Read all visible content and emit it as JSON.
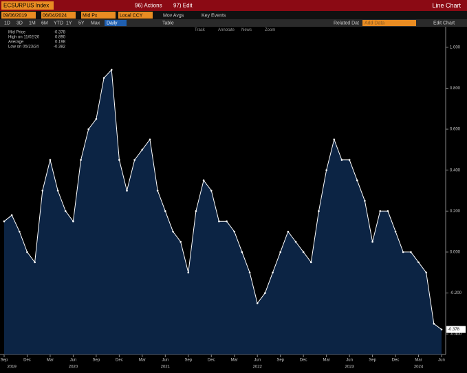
{
  "header": {
    "ticker": "ECSURPUS Index",
    "actions": "96) Actions",
    "edit": "97) Edit",
    "view": "Line Chart"
  },
  "controls": {
    "start": "09/06/2019",
    "end": "06/04/2024",
    "field": "Mid Px",
    "currency": "Local CCY",
    "mov_avgs": "Mov Avgs",
    "key_events": "Key Events"
  },
  "periods": [
    "1D",
    "3D",
    "1M",
    "6M",
    "YTD",
    "1Y",
    "5Y",
    "Max"
  ],
  "toolbar": {
    "freq": "Daily",
    "table": "Table",
    "related": "Related Dat",
    "add_data": "Add Data",
    "edit_chart": "Edit Chart"
  },
  "chart_tools": [
    "Track",
    "Annotate",
    "News",
    "Zoom"
  ],
  "legend": [
    {
      "name": "Mid Price",
      "value": "-0.378"
    },
    {
      "name": "High on 11/02/20",
      "value": "0.890"
    },
    {
      "name": "Average",
      "value": "0.198"
    },
    {
      "name": "Low on 05/23/24",
      "value": "-0.382"
    }
  ],
  "chart_data": {
    "type": "line",
    "x": [
      "2019-09",
      "2019-10",
      "2019-11",
      "2019-12",
      "2020-01",
      "2020-02",
      "2020-03",
      "2020-04",
      "2020-05",
      "2020-06",
      "2020-07",
      "2020-08",
      "2020-09",
      "2020-10",
      "2020-11",
      "2020-12",
      "2021-01",
      "2021-02",
      "2021-03",
      "2021-04",
      "2021-05",
      "2021-06",
      "2021-07",
      "2021-08",
      "2021-09",
      "2021-10",
      "2021-11",
      "2021-12",
      "2022-01",
      "2022-02",
      "2022-03",
      "2022-04",
      "2022-05",
      "2022-06",
      "2022-07",
      "2022-08",
      "2022-09",
      "2022-10",
      "2022-11",
      "2022-12",
      "2023-01",
      "2023-02",
      "2023-03",
      "2023-04",
      "2023-05",
      "2023-06",
      "2023-07",
      "2023-08",
      "2023-09",
      "2023-10",
      "2023-11",
      "2023-12",
      "2024-01",
      "2024-02",
      "2024-03",
      "2024-04",
      "2024-05",
      "2024-06"
    ],
    "series": [
      {
        "name": "Mid Price",
        "color": "#ffffff",
        "values": [
          0.15,
          0.18,
          0.1,
          0.0,
          -0.05,
          0.3,
          0.45,
          0.3,
          0.2,
          0.15,
          0.45,
          0.6,
          0.65,
          0.85,
          0.89,
          0.45,
          0.3,
          0.45,
          0.5,
          0.55,
          0.3,
          0.2,
          0.1,
          0.05,
          -0.1,
          0.2,
          0.35,
          0.3,
          0.15,
          0.15,
          0.1,
          0.0,
          -0.1,
          -0.25,
          -0.2,
          -0.1,
          0.0,
          0.1,
          0.05,
          0.0,
          -0.05,
          0.2,
          0.4,
          0.55,
          0.45,
          0.45,
          0.35,
          0.25,
          0.05,
          0.2,
          0.2,
          0.1,
          0.0,
          0.0,
          -0.05,
          -0.1,
          -0.35,
          -0.378
        ]
      }
    ],
    "last_label": "-0.378",
    "ylim": [
      -0.5,
      1.1
    ],
    "yticks": [
      {
        "value": -0.4,
        "label": "-0.400"
      },
      {
        "value": -0.2,
        "label": "-0.200"
      },
      {
        "value": 0,
        "label": "0.000"
      },
      {
        "value": 0.2,
        "label": "0.200"
      },
      {
        "value": 0.4,
        "label": "0.400"
      },
      {
        "value": 0.6,
        "label": "0.600"
      },
      {
        "value": 0.8,
        "label": "0.800"
      },
      {
        "value": 1,
        "label": "1.000"
      }
    ],
    "xticks": [
      {
        "value": "2019-09",
        "label": "Sep"
      },
      {
        "value": "2019-12",
        "label": "Dec"
      },
      {
        "value": "2020-03",
        "label": "Mar"
      },
      {
        "value": "2020-06",
        "label": "Jun"
      },
      {
        "value": "2020-09",
        "label": "Sep"
      },
      {
        "value": "2020-12",
        "label": "Dec"
      },
      {
        "value": "2021-03",
        "label": "Mar"
      },
      {
        "value": "2021-06",
        "label": "Jun"
      },
      {
        "value": "2021-09",
        "label": "Sep"
      },
      {
        "value": "2021-12",
        "label": "Dec"
      },
      {
        "value": "2022-03",
        "label": "Mar"
      },
      {
        "value": "2022-06",
        "label": "Jun"
      },
      {
        "value": "2022-09",
        "label": "Sep"
      },
      {
        "value": "2022-12",
        "label": "Dec"
      },
      {
        "value": "2023-03",
        "label": "Mar"
      },
      {
        "value": "2023-06",
        "label": "Jun"
      },
      {
        "value": "2023-09",
        "label": "Sep"
      },
      {
        "value": "2023-12",
        "label": "Dec"
      },
      {
        "value": "2024-03",
        "label": "Mar"
      },
      {
        "value": "2024-06",
        "label": "Jun"
      }
    ],
    "xyears": [
      {
        "value": "2019-10",
        "label": "2019"
      },
      {
        "value": "2020-06",
        "label": "2020"
      },
      {
        "value": "2021-06",
        "label": "2021"
      },
      {
        "value": "2022-06",
        "label": "2022"
      },
      {
        "value": "2023-06",
        "label": "2023"
      },
      {
        "value": "2024-03",
        "label": "2024"
      }
    ]
  }
}
